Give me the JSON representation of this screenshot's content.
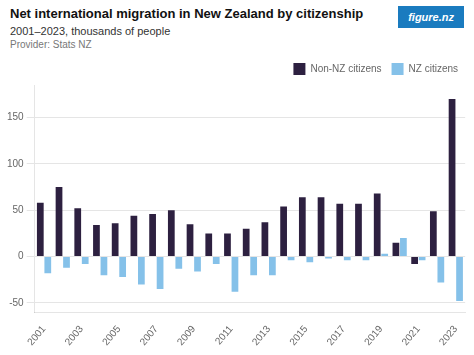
{
  "chart_data": {
    "type": "bar",
    "title": "Net international migration in New Zealand by citizenship",
    "subtitle": "2001–2023, thousands of people",
    "annotations": [
      {
        "text": "Provider: Stats NZ"
      },
      {
        "text": "figure.nz",
        "color": "#1a7bbf"
      }
    ],
    "categories": [
      "2001",
      null,
      "2003",
      null,
      "2005",
      null,
      "2007",
      null,
      "2009",
      null,
      "2011",
      null,
      "2013",
      null,
      "2015",
      null,
      "2017",
      null,
      "2019",
      null,
      "2021",
      null,
      "2023"
    ],
    "series": [
      {
        "name": "Non-NZ citizens",
        "color": "#2d2040",
        "values": [
          58,
          75,
          52,
          34,
          36,
          44,
          46,
          50,
          35,
          25,
          25,
          30,
          37,
          54,
          64,
          64,
          57,
          57,
          68,
          15,
          -8,
          49,
          170
        ]
      },
      {
        "name": "NZ citizens",
        "color": "#85c1e9",
        "values": [
          -18,
          -12,
          -8,
          -20,
          -22,
          -30,
          -35,
          -13,
          -16,
          -8,
          -38,
          -20,
          -20,
          -4,
          -6,
          -2,
          -4,
          -4,
          3,
          20,
          -4,
          -28,
          -48
        ]
      }
    ],
    "ylim": [
      -60,
      185
    ],
    "yticks": [
      -50,
      0,
      50,
      100,
      150
    ],
    "grid": "y",
    "legend": "upper right"
  }
}
